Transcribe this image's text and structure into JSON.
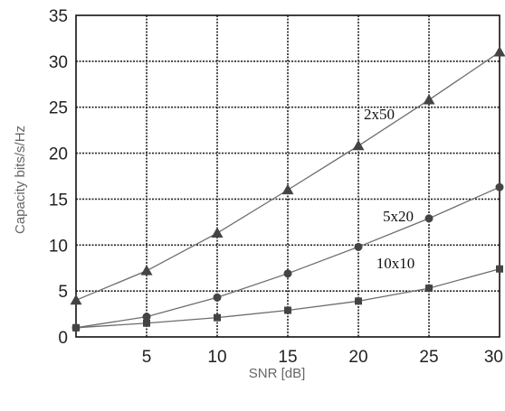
{
  "chart_data": {
    "type": "line",
    "title": "",
    "xlabel": "SNR [dB]",
    "ylabel": "Capacity bits/s/Hz",
    "xlim": [
      0,
      30
    ],
    "ylim": [
      0,
      35
    ],
    "xticks": [
      5,
      10,
      15,
      20,
      25,
      30
    ],
    "yticks": [
      0,
      5,
      10,
      15,
      20,
      25,
      30,
      35
    ],
    "grid": true,
    "legend": "none",
    "series": [
      {
        "name": "2x50",
        "marker": "triangle",
        "x": [
          0,
          5,
          10,
          15,
          20,
          25,
          30
        ],
        "y": [
          4.0,
          7.2,
          11.3,
          16.0,
          20.8,
          25.8,
          31.0
        ]
      },
      {
        "name": "5x20",
        "marker": "circle",
        "x": [
          0,
          5,
          10,
          15,
          20,
          25,
          30
        ],
        "y": [
          1.0,
          2.2,
          4.3,
          6.9,
          9.8,
          12.9,
          16.3
        ]
      },
      {
        "name": "10x10",
        "marker": "square",
        "x": [
          0,
          5,
          10,
          15,
          20,
          25,
          30
        ],
        "y": [
          1.0,
          1.5,
          2.1,
          2.9,
          3.9,
          5.3,
          7.4
        ]
      }
    ]
  },
  "colors": {
    "line": "#6d6d6d",
    "marker": "#444444",
    "grid": "#222222",
    "axis": "#111111"
  }
}
